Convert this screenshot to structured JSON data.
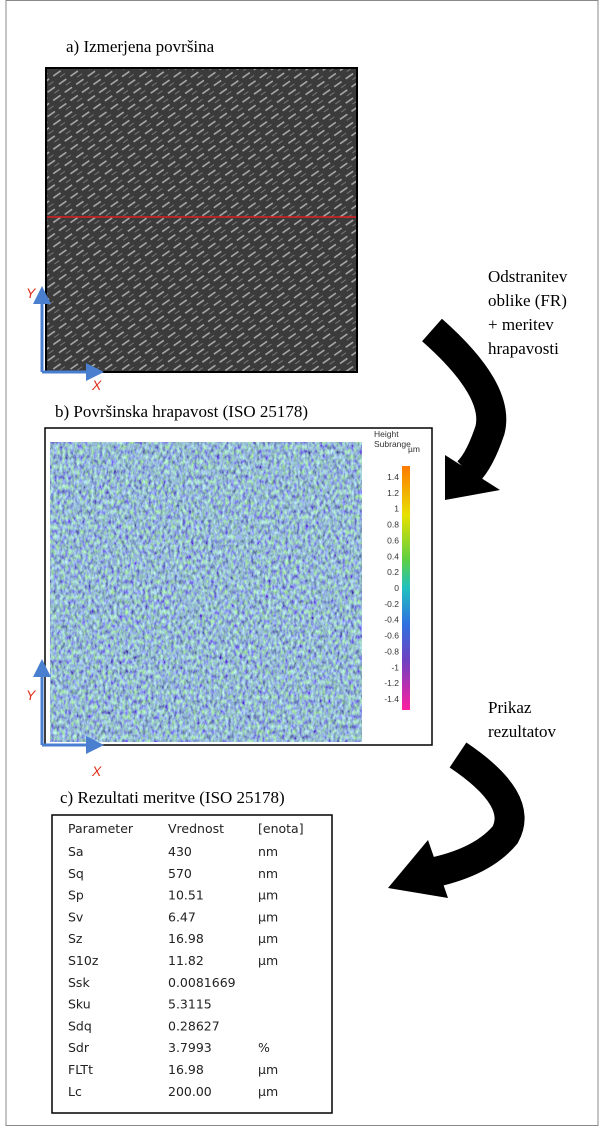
{
  "panel_a": {
    "title": "a) Izmerjena  površina",
    "axis_y": "Y",
    "axis_x": "X"
  },
  "step_1": {
    "lines": [
      "Odstranitev",
      "oblike  (FR)",
      "+ meritev",
      "hrapavosti"
    ]
  },
  "panel_b": {
    "title": "b) Površinska hrapavost (ISO 25178)",
    "axis_y": "Y",
    "axis_x": "X",
    "colorbar": {
      "title": [
        "Height",
        "Subrange"
      ],
      "unit": "µm",
      "ticks": [
        "1.4",
        "1.2",
        "1",
        "0.8",
        "0.6",
        "0.4",
        "0.2",
        "0",
        "-0.2",
        "-0.4",
        "-0.6",
        "-0.8",
        "-1",
        "-1.2",
        "-1.4"
      ]
    }
  },
  "step_2": {
    "lines": [
      "Prikaz",
      "rezultatov"
    ]
  },
  "panel_c": {
    "title": "c) Rezultati  meritve  (ISO 25178)",
    "table": {
      "header": [
        "Parameter",
        "Vrednost",
        "[enota]"
      ],
      "rows": [
        [
          "Sa",
          "430",
          "nm"
        ],
        [
          "Sq",
          "570",
          "nm"
        ],
        [
          "Sp",
          "10.51",
          "µm"
        ],
        [
          "Sv",
          "6.47",
          "µm"
        ],
        [
          "Sz",
          "16.98",
          "µm"
        ],
        [
          "S10z",
          "11.82",
          "µm"
        ],
        [
          "Ssk",
          "0.0081669"
        ],
        [
          "Sku",
          "5.3115"
        ],
        [
          "Sdq",
          "0.28627"
        ],
        [
          "Sdr",
          "3.7993",
          "%"
        ],
        [
          "FLTt",
          "16.98",
          "µm"
        ],
        [
          "Lc",
          "200.00",
          "µm"
        ]
      ]
    }
  }
}
